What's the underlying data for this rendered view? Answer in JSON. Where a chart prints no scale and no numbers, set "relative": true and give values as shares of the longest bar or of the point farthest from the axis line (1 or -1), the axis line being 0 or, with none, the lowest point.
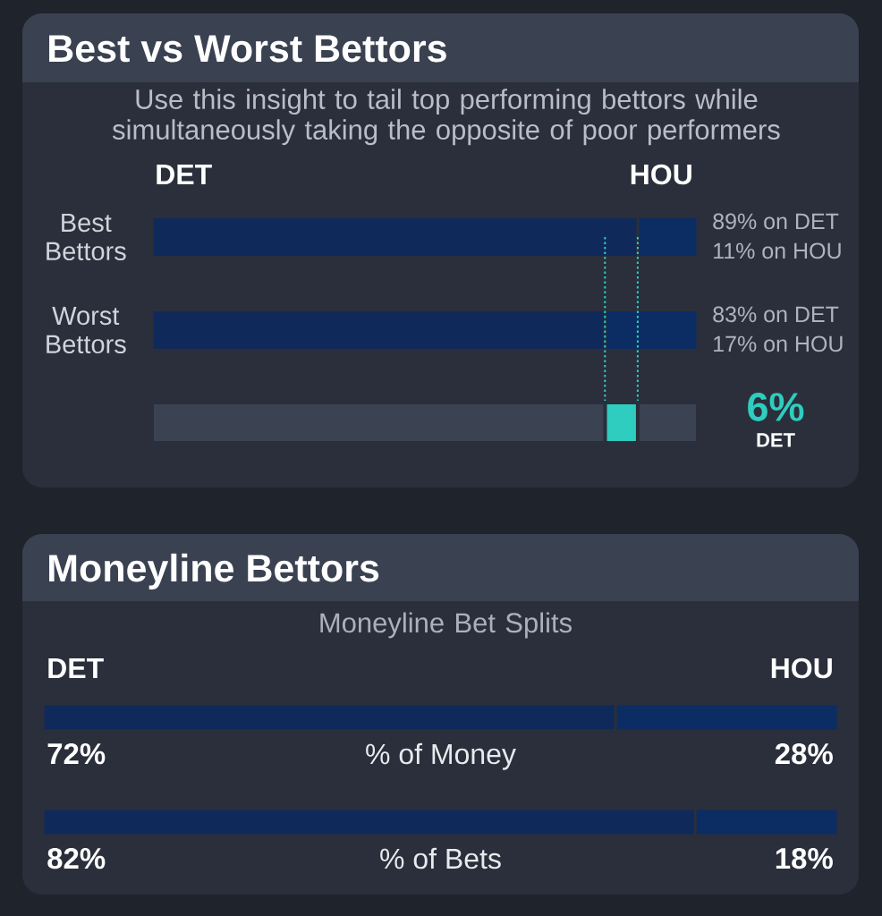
{
  "chart_data": [
    {
      "type": "bar",
      "orientation": "horizontal",
      "stacked": true,
      "title": "Best vs Worst Bettors",
      "subtitle": "Use this insight to tail top performing bettors while simultaneously taking the opposite of poor performers",
      "categories": [
        "Best Bettors",
        "Worst Bettors"
      ],
      "series": [
        {
          "name": "DET",
          "color": "#0f2a5a",
          "values": [
            89,
            83
          ],
          "value_labels": [
            "89% on DET",
            "83% on DET"
          ]
        },
        {
          "name": "HOU",
          "color": "#0c2d64",
          "values": [
            11,
            17
          ],
          "value_labels": [
            "11% on HOU",
            "17% on HOU"
          ]
        }
      ],
      "xlim": [
        0,
        100
      ],
      "tick_labels": "y",
      "ref_lines": [
        {
          "axis": "x",
          "value": 89,
          "color": "#2ecdbf",
          "line_style": "dotted"
        },
        {
          "axis": "x",
          "value": 83,
          "color": "#2ecdbf",
          "line_style": "dotted"
        }
      ]
    },
    {
      "type": "bar",
      "orientation": "horizontal",
      "stacked": true,
      "relative": true,
      "categories": [
        null
      ],
      "series": [
        {
          "color": "#3b4352",
          "values": [
            0.83
          ]
        },
        {
          "color": "#2ecdbf",
          "values": [
            0.06
          ]
        },
        {
          "color": "#3b4352",
          "values": [
            0.11
          ]
        }
      ],
      "tick_labels": false,
      "annotations": [
        "6%",
        "DET"
      ]
    },
    {
      "type": "bar",
      "orientation": "horizontal",
      "stacked": true,
      "title": "Moneyline Bettors",
      "subtitle": "Moneyline Bet Splits",
      "categories": [
        "% of Money",
        "% of Bets"
      ],
      "series": [
        {
          "name": "DET",
          "color": "#0f2a5a",
          "values": [
            72,
            82
          ],
          "value_labels": [
            "72%",
            "82%"
          ]
        },
        {
          "name": "HOU",
          "color": "#0c2d64",
          "values": [
            28,
            18
          ],
          "value_labels": [
            "28%",
            "18%"
          ]
        }
      ],
      "xlim": [
        0,
        100
      ],
      "tick_labels": "y"
    }
  ]
}
